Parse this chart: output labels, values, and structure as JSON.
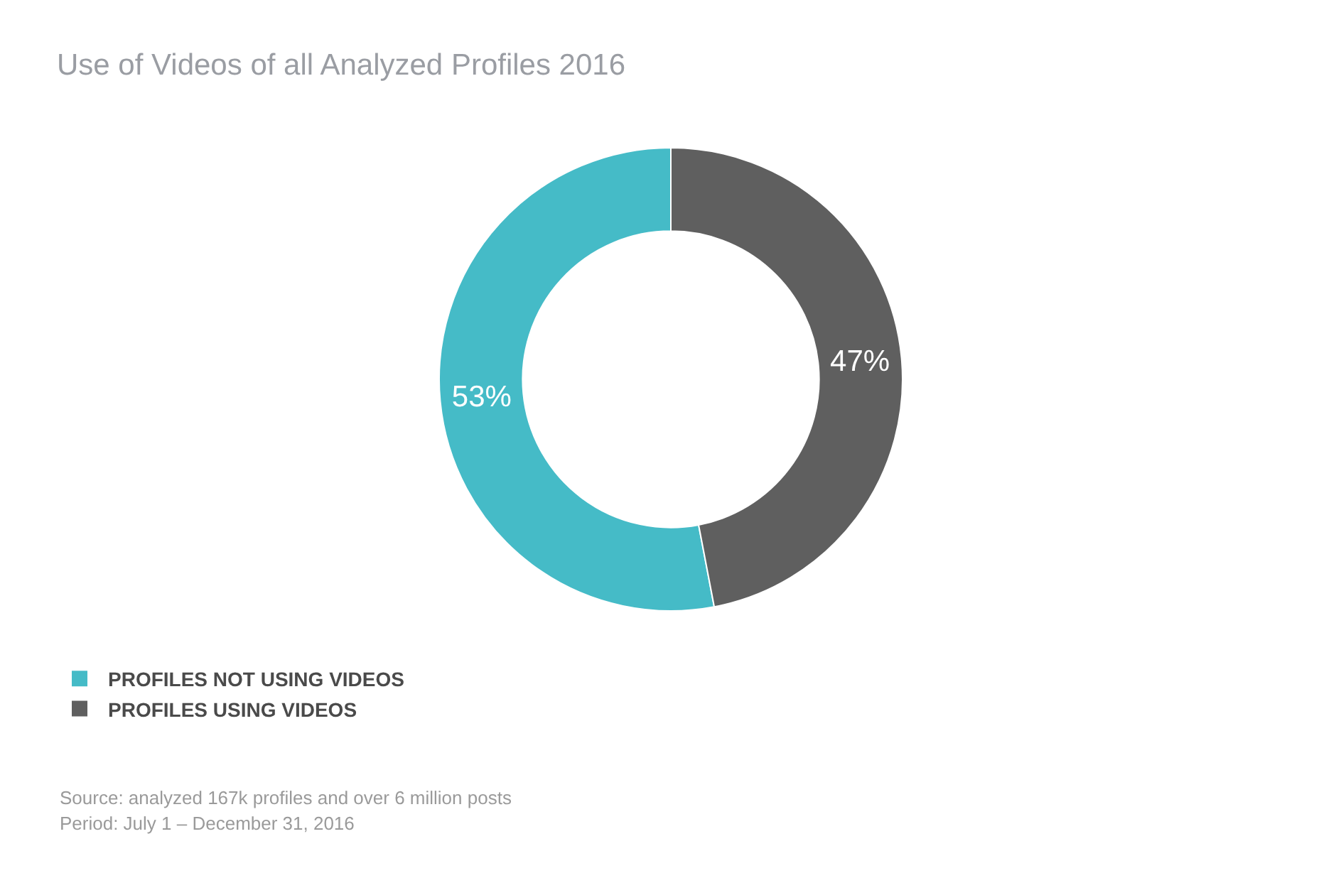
{
  "chart_data": {
    "type": "donut",
    "title": "Use of Videos of all Analyzed Profiles 2016",
    "categories": [
      "PROFILES NOT USING VIDEOS",
      "PROFILES USING VIDEOS"
    ],
    "values": [
      53,
      47
    ],
    "colors": [
      "#45bbc7",
      "#5f5f5f"
    ],
    "value_labels": [
      "53%",
      "47%"
    ],
    "legend": "bottom left",
    "annotations": [
      "Source: analyzed 167k profiles and over 6 million posts",
      "Period: July 1 – December 31, 2016"
    ]
  }
}
